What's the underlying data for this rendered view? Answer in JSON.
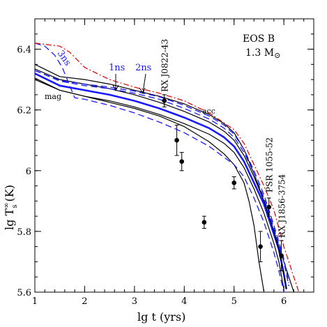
{
  "chart_data": {
    "type": "line",
    "xlabel": "lg t (yrs)",
    "ylabel": "lg T",
    "ylabel_parts": {
      "base": "lg T",
      "sup": "∞",
      "sub": "s",
      "unit": "(K)"
    },
    "xlim": [
      1,
      6.6
    ],
    "ylim": [
      5.6,
      6.5
    ],
    "x_ticks": [
      "1",
      "2",
      "3",
      "4",
      "5",
      "6"
    ],
    "y_ticks": [
      "5.6",
      "5.8",
      "6",
      "6.2",
      "6.4"
    ],
    "inset_labels": {
      "eos": "EOS B",
      "mass": "1.3 M",
      "mass_symbol": "⊙"
    },
    "curve_labels": {
      "mag": "mag",
      "acc": "acc",
      "ns1": "1ns",
      "ns2": "2ns",
      "ns3": "3ns"
    },
    "colors": {
      "black": "#000000",
      "blue": "#1a1aff",
      "red": "#dd0000"
    },
    "series": [
      {
        "id": "acc",
        "color": "black",
        "style": "solid",
        "width": 1.2,
        "x": [
          1,
          1.5,
          2,
          2.5,
          3,
          3.5,
          4,
          4.5,
          4.8,
          5,
          5.2,
          5.4,
          5.6,
          5.8,
          6,
          6.1,
          6.2
        ],
        "y": [
          6.35,
          6.31,
          6.3,
          6.285,
          6.265,
          6.245,
          6.22,
          6.185,
          6.155,
          6.125,
          6.07,
          5.99,
          5.9,
          5.8,
          5.7,
          5.65,
          5.6
        ]
      },
      {
        "id": "thick",
        "color": "blue",
        "style": "solid",
        "width": 2.6,
        "x": [
          1,
          1.5,
          2,
          2.5,
          3,
          3.5,
          4,
          4.5,
          4.8,
          5,
          5.2,
          5.4,
          5.6,
          5.8,
          5.9,
          6,
          6.05
        ],
        "y": [
          6.32,
          6.28,
          6.265,
          6.25,
          6.23,
          6.205,
          6.175,
          6.14,
          6.11,
          6.08,
          6.03,
          5.96,
          5.89,
          5.79,
          5.74,
          5.66,
          5.61
        ]
      },
      {
        "id": "upper-black",
        "color": "black",
        "style": "solid",
        "width": 1.2,
        "x": [
          1,
          1.5,
          2,
          2.5,
          3,
          3.5,
          4,
          4.5,
          4.8,
          5,
          5.2,
          5.4,
          5.6,
          5.8,
          5.9,
          6,
          6.05
        ],
        "y": [
          6.335,
          6.3,
          6.285,
          6.27,
          6.25,
          6.225,
          6.195,
          6.16,
          6.13,
          6.1,
          6.05,
          5.98,
          5.9,
          5.8,
          5.74,
          5.66,
          5.61
        ]
      },
      {
        "id": "mag",
        "color": "black",
        "style": "solid",
        "width": 1.2,
        "x": [
          1,
          1.5,
          2,
          2.5,
          3,
          3.5,
          4,
          4.5,
          4.8,
          5,
          5.2,
          5.3,
          5.4,
          5.5,
          5.6
        ],
        "y": [
          6.3,
          6.265,
          6.245,
          6.225,
          6.205,
          6.18,
          6.145,
          6.095,
          6.055,
          6.02,
          5.96,
          5.9,
          5.82,
          5.7,
          5.6
        ]
      },
      {
        "id": "lower-black",
        "color": "black",
        "style": "solid",
        "width": 1.2,
        "x": [
          1,
          1.5,
          2,
          2.5,
          3,
          3.5,
          4,
          4.5,
          4.8,
          5,
          5.2,
          5.4,
          5.6,
          5.8,
          5.9,
          6
        ],
        "y": [
          6.305,
          6.265,
          6.245,
          6.23,
          6.21,
          6.185,
          6.155,
          6.12,
          6.09,
          6.06,
          6.01,
          5.94,
          5.86,
          5.76,
          5.7,
          5.61
        ]
      },
      {
        "id": "1ns",
        "color": "blue",
        "style": "dashed",
        "width": 1.3,
        "x": [
          1,
          1.5,
          2,
          2.5,
          3,
          3.5,
          4,
          4.5,
          4.8,
          5,
          5.2,
          5.4,
          5.6,
          5.8,
          6,
          6.1
        ],
        "y": [
          6.33,
          6.295,
          6.28,
          6.27,
          6.255,
          6.235,
          6.205,
          6.17,
          6.14,
          6.11,
          6.06,
          5.99,
          5.91,
          5.81,
          5.7,
          5.62
        ]
      },
      {
        "id": "2ns",
        "color": "blue",
        "style": "dashed",
        "width": 1.3,
        "x": [
          1,
          1.5,
          2,
          2.5,
          3,
          3.5,
          4,
          4.5,
          4.8,
          5,
          5.2,
          5.4,
          5.6,
          5.8,
          6,
          6.1
        ],
        "y": [
          6.33,
          6.297,
          6.285,
          6.275,
          6.262,
          6.243,
          6.215,
          6.18,
          6.15,
          6.12,
          6.07,
          6.0,
          5.92,
          5.82,
          5.71,
          5.63
        ]
      },
      {
        "id": "3ns",
        "color": "blue",
        "style": "dashed",
        "width": 1.3,
        "x": [
          1,
          1.2,
          1.4,
          1.55,
          1.7,
          1.8,
          2,
          2.5,
          3,
          3.5,
          4,
          4.5,
          5,
          5.2,
          5.4,
          5.6,
          5.8,
          5.9,
          6
        ],
        "y": [
          6.42,
          6.41,
          6.38,
          6.34,
          6.28,
          6.24,
          6.235,
          6.215,
          6.19,
          6.16,
          6.125,
          6.08,
          6.02,
          5.98,
          5.91,
          5.83,
          5.73,
          5.67,
          5.6
        ]
      },
      {
        "id": "red",
        "color": "red",
        "style": "dashdot",
        "width": 1.2,
        "x": [
          1,
          1.5,
          1.7,
          2,
          2.5,
          3,
          3.5,
          4,
          4.5,
          5,
          5.2,
          5.4,
          5.6,
          5.8,
          6,
          6.2,
          6.3
        ],
        "y": [
          6.42,
          6.41,
          6.39,
          6.34,
          6.3,
          6.275,
          6.255,
          6.23,
          6.19,
          6.135,
          6.09,
          6.02,
          5.95,
          5.87,
          5.75,
          5.65,
          5.6
        ]
      }
    ],
    "observations": [
      {
        "x": 3.6,
        "y": 6.23,
        "yerr": 0.02,
        "label": "RX J0822-43"
      },
      {
        "x": 3.85,
        "y": 6.1,
        "yerr": 0.05
      },
      {
        "x": 3.95,
        "y": 6.03,
        "yerr": 0.03
      },
      {
        "x": 4.4,
        "y": 5.83,
        "yerr": 0.02
      },
      {
        "x": 5.0,
        "y": 5.96,
        "yerr": 0.02
      },
      {
        "x": 5.53,
        "y": 5.75,
        "yerr": 0.05
      },
      {
        "x": 5.7,
        "y": 5.88,
        "yerr": 0.03,
        "label": "PSR 1055-52"
      },
      {
        "x": 5.95,
        "y": 5.72,
        "yerr": 0.05,
        "label": "RX J1856-3754"
      }
    ]
  }
}
